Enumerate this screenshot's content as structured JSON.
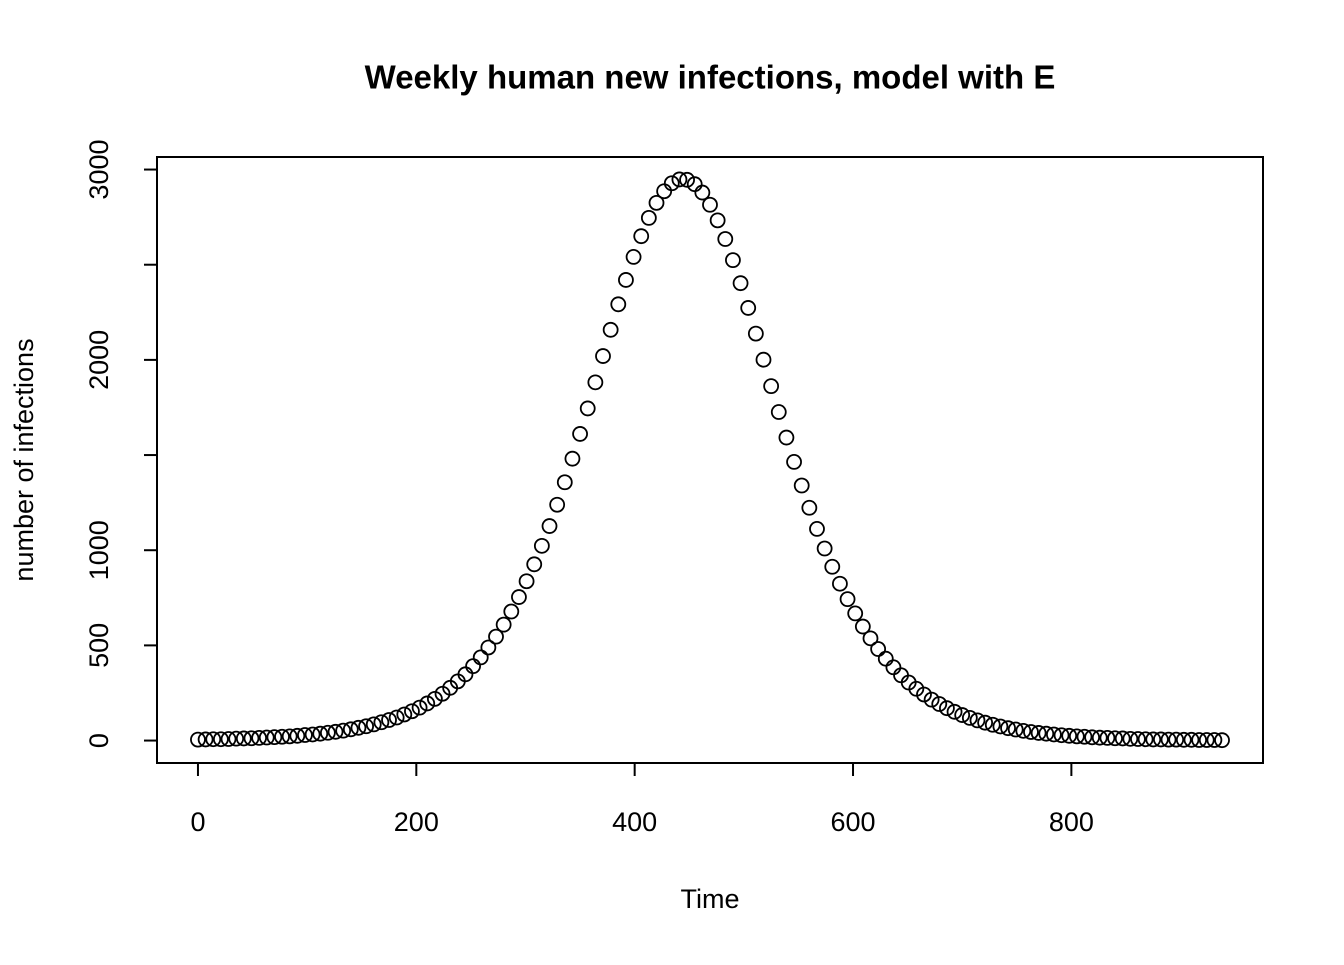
{
  "chart_data": {
    "type": "scatter",
    "title": "Weekly human new infections, model with E",
    "x_label": "Time",
    "y_label": "number of infections",
    "color": "#000000",
    "xlim": [
      -37.52,
      975.52
    ],
    "ylim": [
      -117.92,
      3065.92
    ],
    "xticks": [
      0,
      200,
      400,
      600,
      800
    ],
    "yticks": [
      0,
      500,
      1000,
      {
        "value": 1500,
        "label": null
      },
      2000,
      {
        "value": 2500,
        "label": null
      },
      3000
    ],
    "x": [
      0,
      7,
      14,
      21,
      28,
      35,
      42,
      49,
      56,
      63,
      70,
      77,
      84,
      91,
      98,
      105,
      112,
      119,
      126,
      133,
      140,
      147,
      154,
      161,
      168,
      175,
      182,
      189,
      196,
      203,
      210,
      217,
      224,
      231,
      238,
      245,
      252,
      259,
      266,
      273,
      280,
      287,
      294,
      301,
      308,
      315,
      322,
      329,
      336,
      343,
      350,
      357,
      364,
      371,
      378,
      385,
      392,
      399,
      406,
      413,
      420,
      427,
      434,
      441,
      448,
      455,
      462,
      469,
      476,
      483,
      490,
      497,
      504,
      511,
      518,
      525,
      532,
      539,
      546,
      553,
      560,
      567,
      574,
      581,
      588,
      595,
      602,
      609,
      616,
      623,
      630,
      637,
      644,
      651,
      658,
      665,
      672,
      679,
      686,
      693,
      700,
      707,
      714,
      721,
      728,
      735,
      742,
      749,
      756,
      763,
      770,
      777,
      784,
      791,
      798,
      805,
      812,
      819,
      826,
      833,
      840,
      847,
      854,
      861,
      868,
      875,
      882,
      889,
      896,
      903,
      910,
      917,
      924,
      931,
      938
    ],
    "values": [
      5,
      6,
      7,
      7,
      8,
      10,
      11,
      12,
      14,
      16,
      18,
      20,
      22,
      25,
      29,
      32,
      36,
      41,
      46,
      52,
      59,
      67,
      75,
      85,
      96,
      108,
      121,
      137,
      154,
      173,
      195,
      219,
      246,
      277,
      311,
      348,
      391,
      437,
      489,
      546,
      609,
      678,
      754,
      837,
      926,
      1023,
      1127,
      1239,
      1357,
      1481,
      1611,
      1745,
      1882,
      2020,
      2158,
      2292,
      2420,
      2541,
      2650,
      2746,
      2825,
      2886,
      2928,
      2948,
      2946,
      2923,
      2879,
      2815,
      2733,
      2635,
      2524,
      2403,
      2273,
      2138,
      2001,
      1862,
      1726,
      1592,
      1464,
      1340,
      1223,
      1112,
      1009,
      913,
      824,
      743,
      668,
      599,
      537,
      481,
      430,
      385,
      343,
      305,
      272,
      242,
      215,
      192,
      170,
      151,
      134,
      119,
      106,
      94,
      83,
      74,
      65,
      58,
      51,
      45,
      40,
      36,
      32,
      28,
      25,
      22,
      20,
      17,
      15,
      14,
      12,
      11,
      9,
      8,
      7,
      6,
      6,
      5,
      5,
      4,
      4,
      3,
      3,
      3,
      2
    ]
  }
}
